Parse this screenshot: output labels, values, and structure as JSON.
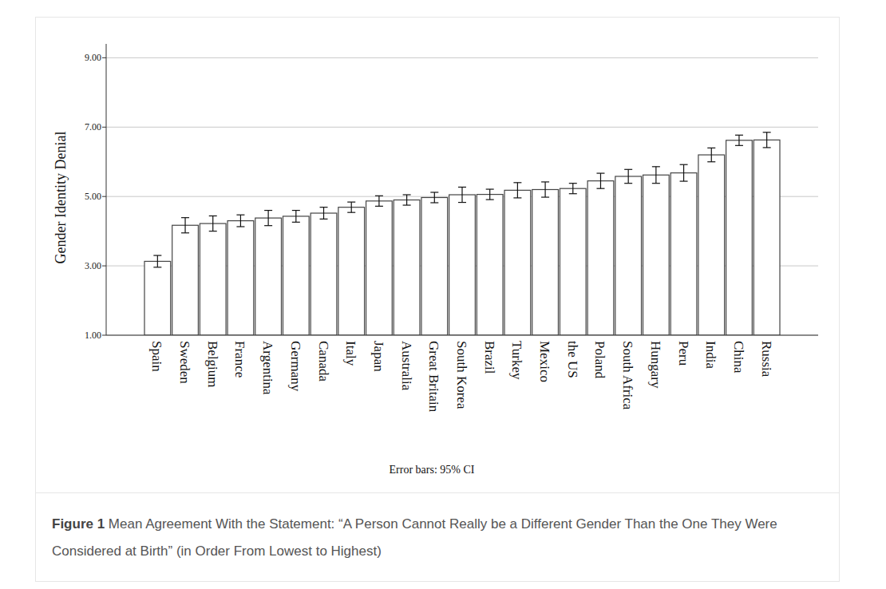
{
  "chart_data": {
    "type": "bar",
    "figure_label": "Figure 1",
    "title": "Mean Agreement With the Statement: “A Person Cannot Really be a Different Gender Than the One They Were Considered at Birth” (in Order From Lowest to Highest)",
    "y_label": "Gender Identity Denial",
    "annotations": [
      "Error bars: 95% CI"
    ],
    "categories": [
      "Spain",
      "Sweden",
      "Belgium",
      "France",
      "Argentina",
      "Germany",
      "Canada",
      "Italy",
      "Japan",
      "Australia",
      "Great Britain",
      "South Korea",
      "Brazil",
      "Turkey",
      "Mexico",
      "the US",
      "Poland",
      "South Africa",
      "Hungary",
      "Peru",
      "India",
      "China",
      "Russia"
    ],
    "values": [
      3.13,
      4.17,
      4.22,
      4.3,
      4.38,
      4.43,
      4.52,
      4.69,
      4.87,
      4.9,
      4.97,
      5.05,
      5.06,
      5.18,
      5.2,
      5.23,
      5.45,
      5.58,
      5.62,
      5.68,
      6.2,
      6.62,
      6.63
    ],
    "errors": [
      0.17,
      0.22,
      0.22,
      0.17,
      0.22,
      0.17,
      0.17,
      0.15,
      0.15,
      0.15,
      0.15,
      0.22,
      0.15,
      0.22,
      0.22,
      0.15,
      0.22,
      0.2,
      0.24,
      0.24,
      0.2,
      0.15,
      0.22
    ],
    "color": "#ffffff",
    "ylim": [
      1,
      9.4
    ],
    "yticks": [
      {
        "value": 1,
        "label": "1.00"
      },
      {
        "value": 3,
        "label": "3.00"
      },
      {
        "value": 5,
        "label": "5.00"
      },
      {
        "value": 7,
        "label": "7.00"
      },
      {
        "value": 9,
        "label": "9.00"
      }
    ],
    "grid": true
  }
}
